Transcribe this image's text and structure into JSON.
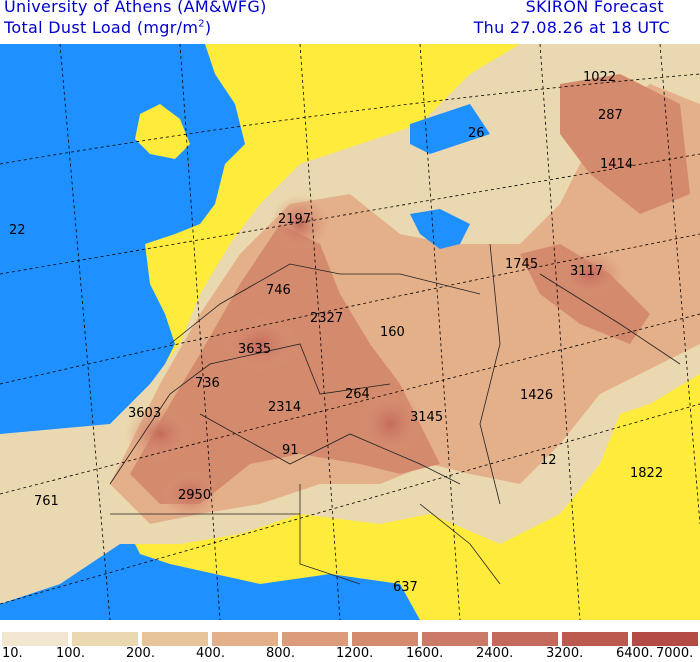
{
  "header": {
    "institution": "University of Athens (AM&WFG)",
    "product_prefix": "Total Dust Load (mgr/m",
    "product_exp": "2",
    "product_suffix": ")",
    "model": "SKIRON Forecast",
    "valid_time": "Thu 27.08.26 at 18 UTC"
  },
  "map_labels": [
    {
      "id": "1022-ne",
      "text": "1022"
    },
    {
      "id": "287",
      "text": "287"
    },
    {
      "id": "26",
      "text": "26"
    },
    {
      "id": "1414",
      "text": "1414"
    },
    {
      "id": "22",
      "text": "22"
    },
    {
      "id": "2197",
      "text": "2197"
    },
    {
      "id": "1745",
      "text": "1745"
    },
    {
      "id": "3117",
      "text": "3117"
    },
    {
      "id": "746",
      "text": "746"
    },
    {
      "id": "2327",
      "text": "2327"
    },
    {
      "id": "160",
      "text": "160"
    },
    {
      "id": "3635",
      "text": "3635"
    },
    {
      "id": "736",
      "text": "736"
    },
    {
      "id": "264",
      "text": "264"
    },
    {
      "id": "1426",
      "text": "1426"
    },
    {
      "id": "3603",
      "text": "3603"
    },
    {
      "id": "2314",
      "text": "2314"
    },
    {
      "id": "3145",
      "text": "3145"
    },
    {
      "id": "91",
      "text": "91"
    },
    {
      "id": "12",
      "text": "12"
    },
    {
      "id": "1822",
      "text": "1822"
    },
    {
      "id": "761",
      "text": "761"
    },
    {
      "id": "2950",
      "text": "2950"
    },
    {
      "id": "637",
      "text": "637"
    }
  ],
  "legend": {
    "ticks": [
      "10.",
      "100.",
      "200.",
      "400.",
      "800.",
      "1200.",
      "1600.",
      "2400.",
      "3200.",
      "6400.",
      "7000."
    ],
    "colors": [
      "#f2e6d0",
      "#ead9b0",
      "#e8c49a",
      "#e4b08a",
      "#dc9c7c",
      "#d48a6c",
      "#cc7a68",
      "#c46a5c",
      "#bc5a50",
      "#b44a44"
    ]
  },
  "colors": {
    "ocean": "#1e90ff",
    "clean_land": "#ffeb3b",
    "header_text": "#0000cc"
  }
}
